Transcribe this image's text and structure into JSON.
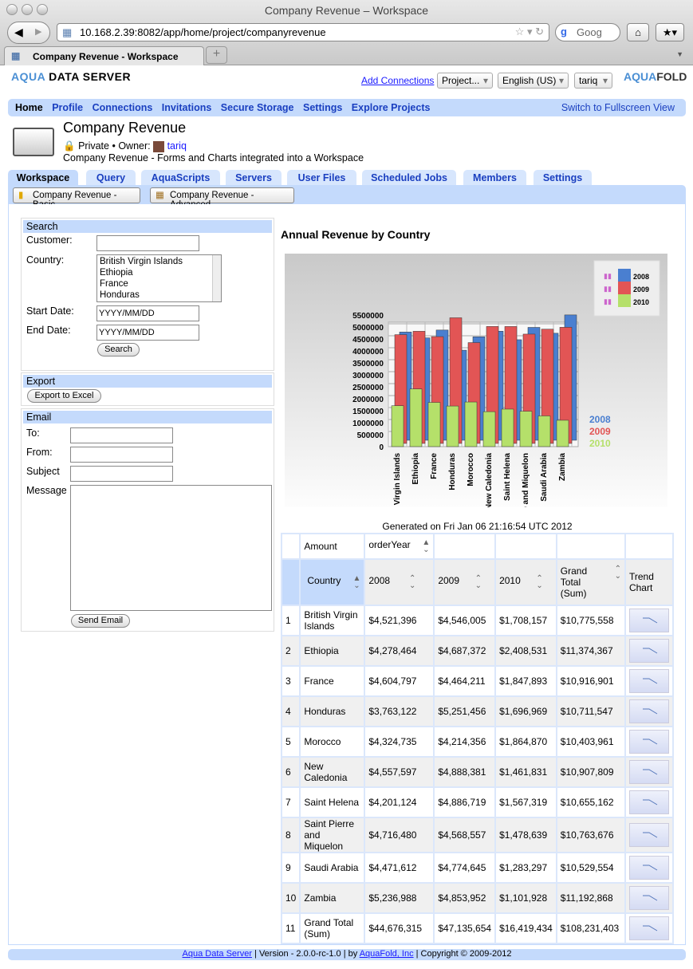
{
  "browser": {
    "window_title": "Company Revenue – Workspace",
    "url": "10.168.2.39:8082/app/home/project/companyrevenue",
    "search_placeholder": "Goog",
    "tab_title": "Company Revenue - Workspace",
    "new_tab": "+"
  },
  "header": {
    "logo_aqua": "AQUA",
    "logo_rest": " DATA SERVER",
    "add_connections": "Add Connections",
    "project_select": "Project...",
    "language_select": "English (US)",
    "user_select": "tariq",
    "brand_aqua": "AQUA",
    "brand_fold": "FOLD"
  },
  "nav": {
    "items": [
      "Home",
      "Profile",
      "Connections",
      "Invitations",
      "Secure Storage",
      "Settings",
      "Explore Projects"
    ],
    "fullscreen": "Switch to Fullscreen View"
  },
  "project": {
    "title": "Company Revenue",
    "privacy": "Private •",
    "owner_label": "Owner:",
    "owner": "tariq",
    "description": "Company Revenue - Forms and Charts integrated into a Workspace"
  },
  "tabs": [
    "Workspace",
    "Query",
    "AquaScripts",
    "Servers",
    "User Files",
    "Scheduled Jobs",
    "Members",
    "Settings"
  ],
  "workspace_buttons": [
    "Company Revenue - Basic",
    "Company Revenue - Advanced"
  ],
  "search": {
    "title": "Search",
    "customer_label": "Customer:",
    "customer_value": "",
    "country_label": "Country:",
    "countries": [
      "British Virgin Islands",
      "Ethiopia",
      "France",
      "Honduras"
    ],
    "start_label": "Start Date:",
    "start_placeholder": "YYYY/MM/DD",
    "end_label": "End Date:",
    "end_placeholder": "YYYY/MM/DD",
    "button": "Search"
  },
  "export": {
    "title": "Export",
    "button": "Export to Excel"
  },
  "email": {
    "title": "Email",
    "to_label": "To:",
    "from_label": "From:",
    "subject_label": "Subject",
    "message_label": "Message",
    "button": "Send Email"
  },
  "chart_data": {
    "type": "bar",
    "title": "Annual Revenue by Country",
    "categories": [
      "Virgin Islands",
      "Ethiopia",
      "France",
      "Honduras",
      "Morocco",
      "New Caledonia",
      "Saint Helena",
      "re and Miquelon",
      "Saudi Arabia",
      "Zambia"
    ],
    "series": [
      {
        "name": "2008",
        "color": "#4a7fd0",
        "values": [
          4521396,
          4278464,
          4604797,
          3763122,
          4324735,
          4557597,
          4201124,
          4716480,
          4471612,
          5236988
        ]
      },
      {
        "name": "2009",
        "color": "#e25555",
        "values": [
          4546005,
          4687372,
          4464211,
          5251456,
          4214356,
          4888381,
          4886719,
          4568557,
          4774645,
          4853952
        ]
      },
      {
        "name": "2010",
        "color": "#b5e06a",
        "values": [
          1708157,
          2408531,
          1847893,
          1696969,
          1864870,
          1461831,
          1567319,
          1478639,
          1283297,
          1101928
        ]
      }
    ],
    "yticks": [
      0,
      500000,
      1000000,
      1500000,
      2000000,
      2500000,
      3000000,
      3500000,
      4000000,
      4500000,
      5000000,
      5500000
    ],
    "ylim": [
      0,
      5500000
    ],
    "grid": true,
    "legend": "top-right"
  },
  "generated": "Generated on Fri Jan 06 21:16:54 UTC 2012",
  "table": {
    "amount_label": "Amount",
    "pivot_label": "orderYear",
    "headers": [
      "Country",
      "2008",
      "2009",
      "2010",
      "Grand Total (Sum)",
      "Trend Chart"
    ],
    "rows": [
      [
        "1",
        "British Virgin Islands",
        "$4,521,396",
        "$4,546,005",
        "$1,708,157",
        "$10,775,558"
      ],
      [
        "2",
        "Ethiopia",
        "$4,278,464",
        "$4,687,372",
        "$2,408,531",
        "$11,374,367"
      ],
      [
        "3",
        "France",
        "$4,604,797",
        "$4,464,211",
        "$1,847,893",
        "$10,916,901"
      ],
      [
        "4",
        "Honduras",
        "$3,763,122",
        "$5,251,456",
        "$1,696,969",
        "$10,711,547"
      ],
      [
        "5",
        "Morocco",
        "$4,324,735",
        "$4,214,356",
        "$1,864,870",
        "$10,403,961"
      ],
      [
        "6",
        "New Caledonia",
        "$4,557,597",
        "$4,888,381",
        "$1,461,831",
        "$10,907,809"
      ],
      [
        "7",
        "Saint Helena",
        "$4,201,124",
        "$4,886,719",
        "$1,567,319",
        "$10,655,162"
      ],
      [
        "8",
        "Saint Pierre and Miquelon",
        "$4,716,480",
        "$4,568,557",
        "$1,478,639",
        "$10,763,676"
      ],
      [
        "9",
        "Saudi Arabia",
        "$4,471,612",
        "$4,774,645",
        "$1,283,297",
        "$10,529,554"
      ],
      [
        "10",
        "Zambia",
        "$5,236,988",
        "$4,853,952",
        "$1,101,928",
        "$11,192,868"
      ],
      [
        "11",
        "Grand Total (Sum)",
        "$44,676,315",
        "$47,135,654",
        "$16,419,434",
        "$108,231,403"
      ]
    ]
  },
  "footer": {
    "app_link": "Aqua Data Server",
    "version": " | Version - 2.0.0-rc-1.0 | by ",
    "company_link": "AquaFold, Inc",
    "copyright": " | Copyright © 2009-2012"
  }
}
